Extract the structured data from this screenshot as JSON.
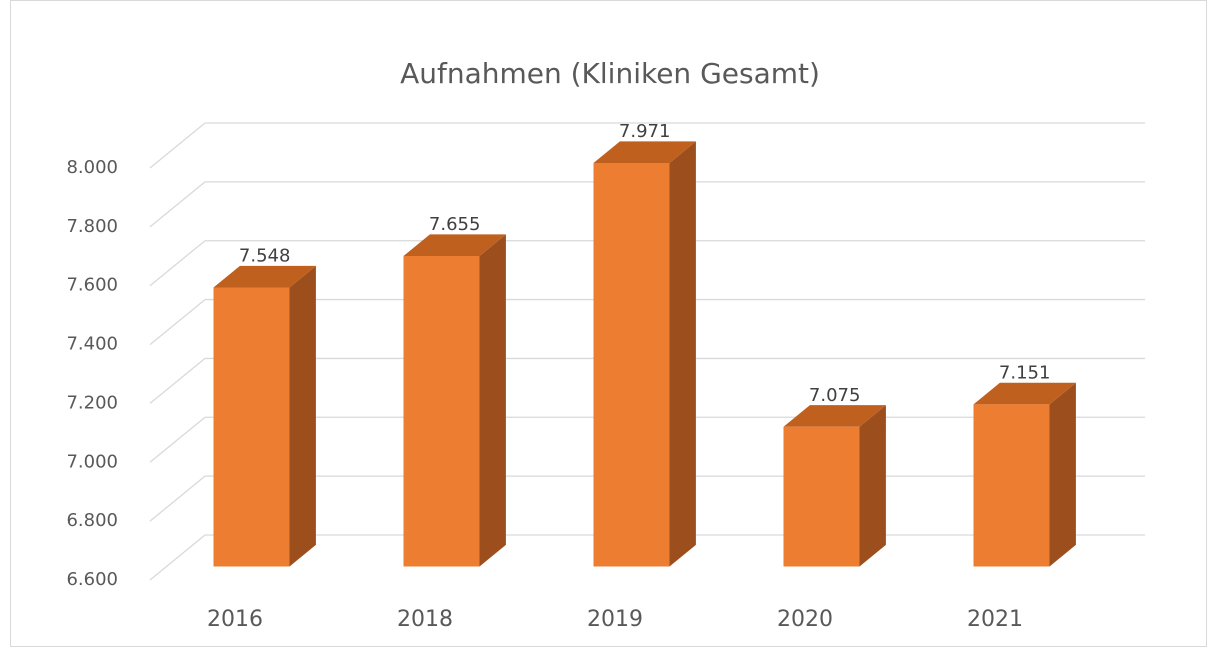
{
  "chart_data": {
    "type": "bar3d",
    "title": "Aufnahmen (Kliniken Gesamt)",
    "categories": [
      "2016",
      "2018",
      "2019",
      "2020",
      "2021"
    ],
    "values": [
      7548,
      7655,
      7971,
      7075,
      7151
    ],
    "value_labels": [
      "7.548",
      "7.655",
      "7.971",
      "7.075",
      "7.151"
    ],
    "color": "#ed7d31",
    "ylim": [
      6600,
      8000
    ],
    "yticks": [
      {
        "value": 6600,
        "label": "6.600"
      },
      {
        "value": 6800,
        "label": "6.800"
      },
      {
        "value": 7000,
        "label": "7.000"
      },
      {
        "value": 7200,
        "label": "7.200"
      },
      {
        "value": 7400,
        "label": "7.400"
      },
      {
        "value": 7600,
        "label": "7.600"
      },
      {
        "value": 7800,
        "label": "7.800"
      },
      {
        "value": 8000,
        "label": "8.000"
      }
    ],
    "grid": true
  }
}
